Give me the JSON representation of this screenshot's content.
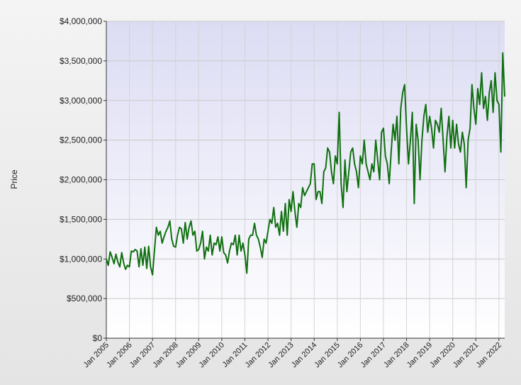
{
  "chart_data": {
    "type": "line",
    "y_label": "Price",
    "x": [
      "2005-01",
      "2005-02",
      "2005-03",
      "2005-04",
      "2005-05",
      "2005-06",
      "2005-07",
      "2005-08",
      "2005-09",
      "2005-10",
      "2005-11",
      "2005-12",
      "2006-01",
      "2006-02",
      "2006-03",
      "2006-04",
      "2006-05",
      "2006-06",
      "2006-07",
      "2006-08",
      "2006-09",
      "2006-10",
      "2006-11",
      "2006-12",
      "2007-01",
      "2007-02",
      "2007-03",
      "2007-04",
      "2007-05",
      "2007-06",
      "2007-07",
      "2007-08",
      "2007-09",
      "2007-10",
      "2007-11",
      "2007-12",
      "2008-01",
      "2008-02",
      "2008-03",
      "2008-04",
      "2008-05",
      "2008-06",
      "2008-07",
      "2008-08",
      "2008-09",
      "2008-10",
      "2008-11",
      "2008-12",
      "2009-01",
      "2009-02",
      "2009-03",
      "2009-04",
      "2009-05",
      "2009-06",
      "2009-07",
      "2009-08",
      "2009-09",
      "2009-10",
      "2009-11",
      "2009-12",
      "2010-01",
      "2010-02",
      "2010-03",
      "2010-04",
      "2010-05",
      "2010-06",
      "2010-07",
      "2010-08",
      "2010-09",
      "2010-10",
      "2010-11",
      "2010-12",
      "2011-01",
      "2011-02",
      "2011-03",
      "2011-04",
      "2011-05",
      "2011-06",
      "2011-07",
      "2011-08",
      "2011-09",
      "2011-10",
      "2011-11",
      "2011-12",
      "2012-01",
      "2012-02",
      "2012-03",
      "2012-04",
      "2012-05",
      "2012-06",
      "2012-07",
      "2012-08",
      "2012-09",
      "2012-10",
      "2012-11",
      "2012-12",
      "2013-01",
      "2013-02",
      "2013-03",
      "2013-04",
      "2013-05",
      "2013-06",
      "2013-07",
      "2013-08",
      "2013-09",
      "2013-10",
      "2013-11",
      "2013-12",
      "2014-01",
      "2014-02",
      "2014-03",
      "2014-04",
      "2014-05",
      "2014-06",
      "2014-07",
      "2014-08",
      "2014-09",
      "2014-10",
      "2014-11",
      "2014-12",
      "2015-01",
      "2015-02",
      "2015-03",
      "2015-04",
      "2015-05",
      "2015-06",
      "2015-07",
      "2015-08",
      "2015-09",
      "2015-10",
      "2015-11",
      "2015-12",
      "2016-01",
      "2016-02",
      "2016-03",
      "2016-04",
      "2016-05",
      "2016-06",
      "2016-07",
      "2016-08",
      "2016-09",
      "2016-10",
      "2016-11",
      "2016-12",
      "2017-01",
      "2017-02",
      "2017-03",
      "2017-04",
      "2017-05",
      "2017-06",
      "2017-07",
      "2017-08",
      "2017-09",
      "2017-10",
      "2017-11",
      "2017-12",
      "2018-01",
      "2018-02",
      "2018-03",
      "2018-04",
      "2018-05",
      "2018-06",
      "2018-07",
      "2018-08",
      "2018-09",
      "2018-10",
      "2018-11",
      "2018-12",
      "2019-01",
      "2019-02",
      "2019-03",
      "2019-04",
      "2019-05",
      "2019-06",
      "2019-07",
      "2019-08",
      "2019-09",
      "2019-10",
      "2019-11",
      "2019-12",
      "2020-01",
      "2020-02",
      "2020-03",
      "2020-04",
      "2020-05",
      "2020-06",
      "2020-07",
      "2020-08",
      "2020-09",
      "2020-10",
      "2020-11",
      "2020-12",
      "2021-01",
      "2021-02",
      "2021-03",
      "2021-04",
      "2021-05",
      "2021-06",
      "2021-07",
      "2021-08",
      "2021-09",
      "2021-10",
      "2021-11",
      "2021-12",
      "2022-01",
      "2022-02",
      "2022-03",
      "2022-04"
    ],
    "series": [
      {
        "color": "#107010",
        "values": [
          1000000,
          920000,
          1090000,
          1020000,
          940000,
          1060000,
          960000,
          900000,
          1080000,
          950000,
          870000,
          920000,
          900000,
          1100000,
          1090000,
          1120000,
          1100000,
          900000,
          1130000,
          920000,
          1150000,
          880000,
          1160000,
          900000,
          800000,
          1100000,
          1400000,
          1300000,
          1350000,
          1200000,
          1280000,
          1350000,
          1400000,
          1480000,
          1250000,
          1160000,
          1150000,
          1300000,
          1400000,
          1380000,
          1200000,
          1460000,
          1250000,
          1400000,
          1480000,
          1300000,
          1350000,
          1100000,
          1120000,
          1200000,
          1350000,
          1000000,
          1150000,
          1100000,
          1300000,
          1050000,
          1200000,
          1180000,
          1280000,
          1100000,
          1280000,
          1080000,
          1050000,
          950000,
          1100000,
          1200000,
          1180000,
          1300000,
          1050000,
          1300000,
          1100000,
          1200000,
          1050000,
          820000,
          1250000,
          1300000,
          1300000,
          1450000,
          1300000,
          1250000,
          1150000,
          1020000,
          1250000,
          1200000,
          1350000,
          1500000,
          1450000,
          1650000,
          1400000,
          1450000,
          1300000,
          1600000,
          1350000,
          1700000,
          1300000,
          1750000,
          1600000,
          1850000,
          1600000,
          1400000,
          1700000,
          1650000,
          1900000,
          1800000,
          1850000,
          1900000,
          1950000,
          2200000,
          2200000,
          1750000,
          1850000,
          1850000,
          1700000,
          2100000,
          2150000,
          2400000,
          2350000,
          2100000,
          1950000,
          2300000,
          2200000,
          2850000,
          1950000,
          1650000,
          2250000,
          1850000,
          2100000,
          2350000,
          2400000,
          2200000,
          2100000,
          1900000,
          2300000,
          2200000,
          2500000,
          2200000,
          2100000,
          2000000,
          2200000,
          2100000,
          2500000,
          2250000,
          2000000,
          2600000,
          2650000,
          2300000,
          2200000,
          1950000,
          2350000,
          2700000,
          2500000,
          2800000,
          2200000,
          2900000,
          3100000,
          3200000,
          2650000,
          2200000,
          2500000,
          2850000,
          1700000,
          2700000,
          2500000,
          2000000,
          2500000,
          2800000,
          2950000,
          2600000,
          2800000,
          2650000,
          2400000,
          2750000,
          2700000,
          2600000,
          2900000,
          2500000,
          2100000,
          2550000,
          2800000,
          2400000,
          2750000,
          2400000,
          2700000,
          2450000,
          2350000,
          2600000,
          2450000,
          1900000,
          2500000,
          2650000,
          3200000,
          2900000,
          2700000,
          3150000,
          2950000,
          3350000,
          2900000,
          3050000,
          2750000,
          3100000,
          3250000,
          2850000,
          3350000,
          3000000,
          2950000,
          2350000,
          3600000,
          3050000
        ]
      }
    ],
    "xlim": [
      "2005-01",
      "2022-04"
    ],
    "xticks": [
      {
        "value": "2005-01",
        "label": "Jan 2005"
      },
      {
        "value": "2006-01",
        "label": "Jan 2006"
      },
      {
        "value": "2007-01",
        "label": "Jan 2007"
      },
      {
        "value": "2008-01",
        "label": "Jan 2008"
      },
      {
        "value": "2009-01",
        "label": "Jan 2009"
      },
      {
        "value": "2010-01",
        "label": "Jan 2010"
      },
      {
        "value": "2011-01",
        "label": "Jan 2011"
      },
      {
        "value": "2012-01",
        "label": "Jan 2012"
      },
      {
        "value": "2013-01",
        "label": "Jan 2013"
      },
      {
        "value": "2014-01",
        "label": "Jan 2014"
      },
      {
        "value": "2015-01",
        "label": "Jan 2015"
      },
      {
        "value": "2016-01",
        "label": "Jan 2016"
      },
      {
        "value": "2017-01",
        "label": "Jan 2017"
      },
      {
        "value": "2018-01",
        "label": "Jan 2018"
      },
      {
        "value": "2019-01",
        "label": "Jan 2019"
      },
      {
        "value": "2020-01",
        "label": "Jan 2020"
      },
      {
        "value": "2021-01",
        "label": "Jan 2021"
      },
      {
        "value": "2022-01",
        "label": "Jan 2022"
      }
    ],
    "ylim": [
      0,
      4000000
    ],
    "yticks": [
      {
        "value": 0,
        "label": "$0"
      },
      {
        "value": 500000,
        "label": "$500,000"
      },
      {
        "value": 1000000,
        "label": "$1,000,000"
      },
      {
        "value": 1500000,
        "label": "$1,500,000"
      },
      {
        "value": 2000000,
        "label": "$2,000,000"
      },
      {
        "value": 2500000,
        "label": "$2,500,000"
      },
      {
        "value": 3000000,
        "label": "$3,000,000"
      },
      {
        "value": 3500000,
        "label": "$3,500,000"
      },
      {
        "value": 4000000,
        "label": "$4,000,000"
      }
    ],
    "grid": true
  }
}
